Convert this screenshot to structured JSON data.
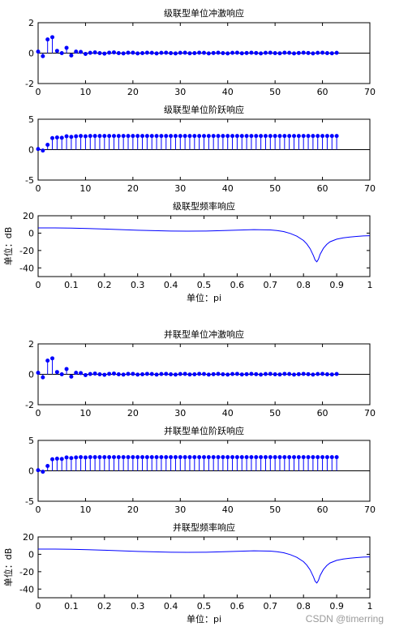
{
  "watermark": "CSDN @timerring",
  "colors": {
    "series": "#0000ff",
    "axes": "#000000",
    "background": "#ffffff"
  },
  "chart_data": [
    {
      "type": "stem",
      "title": "级联型单位冲激响应",
      "xlim": [
        0,
        70
      ],
      "ylim": [
        -2,
        2
      ],
      "xticks": [
        0,
        10,
        20,
        30,
        40,
        50,
        60,
        70
      ],
      "yticks": [
        -2,
        0,
        2
      ],
      "xlabel": "",
      "ylabel": "",
      "n": [
        0,
        1,
        2,
        3,
        4,
        5,
        6,
        7,
        8,
        9,
        10,
        11,
        12,
        13,
        14,
        15,
        16,
        17,
        18,
        19,
        20,
        21,
        22,
        23,
        24,
        25,
        26,
        27,
        28,
        29,
        30,
        31,
        32,
        33,
        34,
        35,
        36,
        37,
        38,
        39,
        40,
        41,
        42,
        43,
        44,
        45,
        46,
        47,
        48,
        49,
        50,
        51,
        52,
        53,
        54,
        55,
        56,
        57,
        58,
        59,
        60,
        61,
        62,
        63
      ],
      "values": [
        0.1,
        -0.2,
        0.9,
        1.05,
        0.15,
        0.0,
        0.35,
        -0.15,
        0.1,
        0.08,
        -0.05,
        0.02,
        0.05,
        0.0,
        -0.03,
        0.03,
        0.05,
        0.0,
        -0.02,
        0.03,
        0.03,
        -0.02,
        0.0,
        0.03,
        0.02,
        -0.02,
        0.02,
        0.03,
        0.0,
        -0.02,
        0.02,
        0.03,
        -0.01,
        0.0,
        0.03,
        0.02,
        -0.02,
        0.01,
        0.03,
        0.0,
        -0.02,
        0.02,
        0.03,
        -0.01,
        0.01,
        0.03,
        0.01,
        -0.02,
        0.02,
        0.03,
        0.0,
        -0.01,
        0.03,
        0.02,
        -0.02,
        0.01,
        0.03,
        0.01,
        -0.02,
        0.02,
        0.03,
        0.0,
        -0.01,
        0.02
      ]
    },
    {
      "type": "stem",
      "title": "级联型单位阶跃响应",
      "xlim": [
        0,
        70
      ],
      "ylim": [
        -5,
        5
      ],
      "xticks": [
        0,
        10,
        20,
        30,
        40,
        50,
        60,
        70
      ],
      "yticks": [
        -5,
        0,
        5
      ],
      "xlabel": "",
      "ylabel": "",
      "n": [
        0,
        1,
        2,
        3,
        4,
        5,
        6,
        7,
        8,
        9,
        10,
        11,
        12,
        13,
        14,
        15,
        16,
        17,
        18,
        19,
        20,
        21,
        22,
        23,
        24,
        25,
        26,
        27,
        28,
        29,
        30,
        31,
        32,
        33,
        34,
        35,
        36,
        37,
        38,
        39,
        40,
        41,
        42,
        43,
        44,
        45,
        46,
        47,
        48,
        49,
        50,
        51,
        52,
        53,
        54,
        55,
        56,
        57,
        58,
        59,
        60,
        61,
        62,
        63
      ],
      "values": [
        0.1,
        -0.15,
        0.8,
        1.9,
        2.0,
        1.95,
        2.2,
        2.1,
        2.2,
        2.25,
        2.2,
        2.25,
        2.25,
        2.25,
        2.25,
        2.25,
        2.25,
        2.25,
        2.25,
        2.25,
        2.25,
        2.25,
        2.25,
        2.25,
        2.25,
        2.25,
        2.25,
        2.25,
        2.25,
        2.25,
        2.25,
        2.25,
        2.25,
        2.25,
        2.25,
        2.25,
        2.25,
        2.25,
        2.25,
        2.25,
        2.25,
        2.25,
        2.25,
        2.25,
        2.25,
        2.25,
        2.25,
        2.25,
        2.25,
        2.25,
        2.25,
        2.25,
        2.25,
        2.25,
        2.25,
        2.25,
        2.25,
        2.25,
        2.25,
        2.25,
        2.25,
        2.25,
        2.25,
        2.25
      ]
    },
    {
      "type": "line",
      "title": "级联型频率响应",
      "xlim": [
        0,
        1
      ],
      "ylim": [
        -50,
        20
      ],
      "xticks": [
        0,
        0.1,
        0.2,
        0.3,
        0.4,
        0.5,
        0.6,
        0.7,
        0.8,
        0.9,
        1
      ],
      "yticks": [
        -40,
        -20,
        0,
        20
      ],
      "xlabel": "单位：pi",
      "ylabel": "单位：dB",
      "x": [
        0,
        0.05,
        0.1,
        0.15,
        0.2,
        0.25,
        0.3,
        0.35,
        0.4,
        0.45,
        0.5,
        0.55,
        0.6,
        0.65,
        0.7,
        0.72,
        0.74,
        0.76,
        0.78,
        0.8,
        0.81,
        0.82,
        0.83,
        0.835,
        0.84,
        0.845,
        0.85,
        0.86,
        0.87,
        0.88,
        0.9,
        0.92,
        0.94,
        0.96,
        0.98,
        1.0
      ],
      "values": [
        6,
        6,
        5.8,
        5.3,
        4.7,
        4,
        3.3,
        2.8,
        2.4,
        2.3,
        2.4,
        2.8,
        3.4,
        4,
        3.7,
        3,
        1.8,
        -0.3,
        -3.5,
        -8.5,
        -12.5,
        -18,
        -26,
        -31,
        -33,
        -30,
        -24.5,
        -17.5,
        -13,
        -10,
        -7,
        -5.5,
        -4.5,
        -3.8,
        -3.2,
        -3
      ]
    },
    {
      "type": "stem",
      "title": "并联型单位冲激响应",
      "xlim": [
        0,
        70
      ],
      "ylim": [
        -2,
        2
      ],
      "xticks": [
        0,
        10,
        20,
        30,
        40,
        50,
        60,
        70
      ],
      "yticks": [
        -2,
        0,
        2
      ],
      "xlabel": "",
      "ylabel": "",
      "n": [
        0,
        1,
        2,
        3,
        4,
        5,
        6,
        7,
        8,
        9,
        10,
        11,
        12,
        13,
        14,
        15,
        16,
        17,
        18,
        19,
        20,
        21,
        22,
        23,
        24,
        25,
        26,
        27,
        28,
        29,
        30,
        31,
        32,
        33,
        34,
        35,
        36,
        37,
        38,
        39,
        40,
        41,
        42,
        43,
        44,
        45,
        46,
        47,
        48,
        49,
        50,
        51,
        52,
        53,
        54,
        55,
        56,
        57,
        58,
        59,
        60,
        61,
        62,
        63
      ],
      "values": [
        0.1,
        -0.2,
        0.9,
        1.05,
        0.15,
        0.0,
        0.35,
        -0.15,
        0.1,
        0.08,
        -0.05,
        0.02,
        0.05,
        0.0,
        -0.03,
        0.03,
        0.05,
        0.0,
        -0.02,
        0.03,
        0.03,
        -0.02,
        0.0,
        0.03,
        0.02,
        -0.02,
        0.02,
        0.03,
        0.0,
        -0.02,
        0.02,
        0.03,
        -0.01,
        0.0,
        0.03,
        0.02,
        -0.02,
        0.01,
        0.03,
        0.0,
        -0.02,
        0.02,
        0.03,
        -0.01,
        0.01,
        0.03,
        0.01,
        -0.02,
        0.02,
        0.03,
        0.0,
        -0.01,
        0.03,
        0.02,
        -0.02,
        0.01,
        0.03,
        0.01,
        -0.02,
        0.02,
        0.03,
        0.0,
        -0.01,
        0.02
      ]
    },
    {
      "type": "stem",
      "title": "并联型单位阶跃响应",
      "xlim": [
        0,
        70
      ],
      "ylim": [
        -5,
        5
      ],
      "xticks": [
        0,
        10,
        20,
        30,
        40,
        50,
        60,
        70
      ],
      "yticks": [
        -5,
        0,
        5
      ],
      "xlabel": "",
      "ylabel": "",
      "n": [
        0,
        1,
        2,
        3,
        4,
        5,
        6,
        7,
        8,
        9,
        10,
        11,
        12,
        13,
        14,
        15,
        16,
        17,
        18,
        19,
        20,
        21,
        22,
        23,
        24,
        25,
        26,
        27,
        28,
        29,
        30,
        31,
        32,
        33,
        34,
        35,
        36,
        37,
        38,
        39,
        40,
        41,
        42,
        43,
        44,
        45,
        46,
        47,
        48,
        49,
        50,
        51,
        52,
        53,
        54,
        55,
        56,
        57,
        58,
        59,
        60,
        61,
        62,
        63
      ],
      "values": [
        0.1,
        -0.15,
        0.8,
        1.9,
        2.0,
        1.95,
        2.2,
        2.1,
        2.2,
        2.25,
        2.2,
        2.25,
        2.25,
        2.25,
        2.25,
        2.25,
        2.25,
        2.25,
        2.25,
        2.25,
        2.25,
        2.25,
        2.25,
        2.25,
        2.25,
        2.25,
        2.25,
        2.25,
        2.25,
        2.25,
        2.25,
        2.25,
        2.25,
        2.25,
        2.25,
        2.25,
        2.25,
        2.25,
        2.25,
        2.25,
        2.25,
        2.25,
        2.25,
        2.25,
        2.25,
        2.25,
        2.25,
        2.25,
        2.25,
        2.25,
        2.25,
        2.25,
        2.25,
        2.25,
        2.25,
        2.25,
        2.25,
        2.25,
        2.25,
        2.25,
        2.25,
        2.25,
        2.25,
        2.25
      ]
    },
    {
      "type": "line",
      "title": "并联型频率响应",
      "xlim": [
        0,
        1
      ],
      "ylim": [
        -50,
        20
      ],
      "xticks": [
        0,
        0.1,
        0.2,
        0.3,
        0.4,
        0.5,
        0.6,
        0.7,
        0.8,
        0.9,
        1
      ],
      "yticks": [
        -40,
        -20,
        0,
        20
      ],
      "xlabel": "单位：pi",
      "ylabel": "单位：dB",
      "x": [
        0,
        0.05,
        0.1,
        0.15,
        0.2,
        0.25,
        0.3,
        0.35,
        0.4,
        0.45,
        0.5,
        0.55,
        0.6,
        0.65,
        0.7,
        0.72,
        0.74,
        0.76,
        0.78,
        0.8,
        0.81,
        0.82,
        0.83,
        0.835,
        0.84,
        0.845,
        0.85,
        0.86,
        0.87,
        0.88,
        0.9,
        0.92,
        0.94,
        0.96,
        0.98,
        1.0
      ],
      "values": [
        6,
        6,
        5.8,
        5.3,
        4.7,
        4,
        3.3,
        2.8,
        2.4,
        2.3,
        2.4,
        2.8,
        3.4,
        4,
        3.7,
        3,
        1.8,
        -0.3,
        -3.5,
        -8.5,
        -12.5,
        -18,
        -26,
        -31,
        -33,
        -30,
        -24.5,
        -17.5,
        -13,
        -10,
        -7,
        -5.5,
        -4.5,
        -3.8,
        -3.2,
        -3
      ]
    }
  ]
}
